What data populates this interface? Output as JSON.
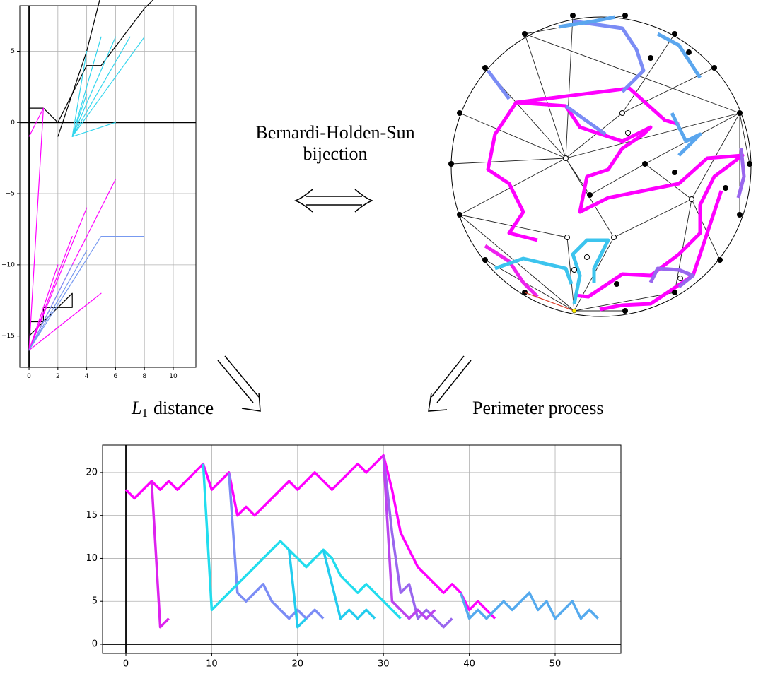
{
  "labels": {
    "bijection_line1": "Bernardi-Holden-Sun",
    "bijection_line2": "bijection",
    "left_symbol": "L",
    "left_subscript": "1",
    "left_text": "distance",
    "right_text": "Perimeter process"
  },
  "chart_data": [
    {
      "type": "line",
      "grid": true,
      "xlim": [
        -0.64,
        11.57
      ],
      "ylim": [
        -17.2,
        8.2
      ],
      "xticks": [
        0,
        2,
        4,
        6,
        8,
        10
      ],
      "yticks": [
        {
          "value": -15,
          "label": "−15"
        },
        {
          "value": -10,
          "label": "−10"
        },
        {
          "value": -5,
          "label": "−5"
        },
        0,
        5
      ],
      "series": [
        {
          "color": "#000000",
          "x": [
            0,
            3,
            3,
            1,
            1,
            0,
            0,
            1,
            2,
            4,
            5,
            8,
            9,
            5,
            4,
            2
          ],
          "values": [
            -15,
            -12,
            -13,
            -13,
            -14,
            -14,
            1,
            1,
            0,
            4,
            4,
            8,
            9,
            9,
            5,
            -1
          ]
        },
        {
          "color": "#ff00ff",
          "x": [
            0,
            1,
            0,
            2,
            0,
            3,
            0,
            4,
            0,
            5,
            0,
            6,
            0,
            1,
            0
          ],
          "values": [
            -16,
            -13,
            -16,
            -10,
            -16,
            -8,
            -16,
            -6,
            -16,
            -12,
            -16,
            -4,
            -16,
            1,
            -1
          ]
        },
        {
          "color": "#33d6ee",
          "x": [
            3,
            4,
            3,
            5,
            3,
            6,
            3,
            7,
            3,
            8,
            3,
            6,
            3,
            4
          ],
          "values": [
            -1,
            5,
            -1,
            6,
            -1,
            6,
            -1,
            6,
            -1,
            6,
            -1,
            0,
            -1,
            2
          ]
        },
        {
          "color": "#7799f0",
          "x": [
            0,
            2,
            0,
            3,
            0,
            4,
            0,
            5,
            6,
            7,
            8
          ],
          "values": [
            -16,
            -12,
            -16,
            -10,
            -16,
            -9,
            -16,
            -8,
            -8,
            -8,
            -8
          ]
        }
      ]
    },
    {
      "type": "line",
      "grid": true,
      "xlim": [
        -2.72,
        57.66
      ],
      "ylim": [
        -1.07,
        23.2
      ],
      "xticks": [
        0,
        10,
        20,
        30,
        40,
        50
      ],
      "yticks": [
        0,
        5,
        10,
        15,
        20
      ],
      "series": [
        {
          "color": "#ff00ff",
          "x": [
            0,
            1,
            2,
            3,
            4,
            5,
            6,
            9,
            10,
            12,
            13,
            14,
            15,
            19,
            20,
            22,
            24,
            27,
            28,
            30,
            31,
            32,
            34,
            37,
            38,
            39,
            40,
            41,
            42,
            43
          ],
          "values": [
            18,
            17,
            18,
            19,
            18,
            19,
            18,
            21,
            18,
            20,
            15,
            16,
            15,
            19,
            18,
            20,
            18,
            21,
            20,
            22,
            18,
            13,
            9,
            6,
            7,
            6,
            4,
            5,
            4,
            3
          ]
        },
        {
          "color": "#dd22ee",
          "x": [
            3,
            4,
            5
          ],
          "values": [
            19,
            2,
            3
          ]
        },
        {
          "color": "#7b8cf5",
          "x": [
            12,
            13,
            14,
            16,
            17,
            18,
            19,
            20,
            21,
            22,
            23
          ],
          "values": [
            20,
            6,
            5,
            7,
            5,
            4,
            3,
            4,
            3,
            4,
            3
          ]
        },
        {
          "color": "#22ddee",
          "x": [
            9,
            10,
            18,
            19,
            20,
            21,
            23,
            24,
            25,
            27,
            28,
            32
          ],
          "values": [
            21,
            4,
            12,
            11,
            10,
            9,
            11,
            10,
            8,
            6,
            7,
            3
          ]
        },
        {
          "color": "#22ccee",
          "x": [
            19,
            20,
            21,
            null,
            23,
            25,
            26,
            27,
            28,
            29
          ],
          "values": [
            11,
            2,
            3,
            null,
            11,
            3,
            4,
            3,
            4,
            3
          ]
        },
        {
          "color": "#9966ee",
          "x": [
            30,
            31,
            32,
            33,
            34,
            35,
            36,
            37,
            38
          ],
          "values": [
            22,
            13,
            6,
            7,
            3,
            4,
            3,
            2,
            3
          ]
        },
        {
          "color": "#bb44ee",
          "x": [
            30,
            31,
            33,
            34,
            35,
            36
          ],
          "values": [
            22,
            5,
            3,
            4,
            3,
            4
          ]
        },
        {
          "color": "#55aaee",
          "x": [
            39,
            40,
            41,
            42,
            43,
            44,
            45,
            47,
            48,
            49,
            50,
            52,
            53,
            54,
            55
          ],
          "values": [
            6,
            3,
            4,
            3,
            4,
            5,
            4,
            6,
            4,
            5,
            3,
            5,
            3,
            4,
            3
          ]
        }
      ]
    }
  ]
}
